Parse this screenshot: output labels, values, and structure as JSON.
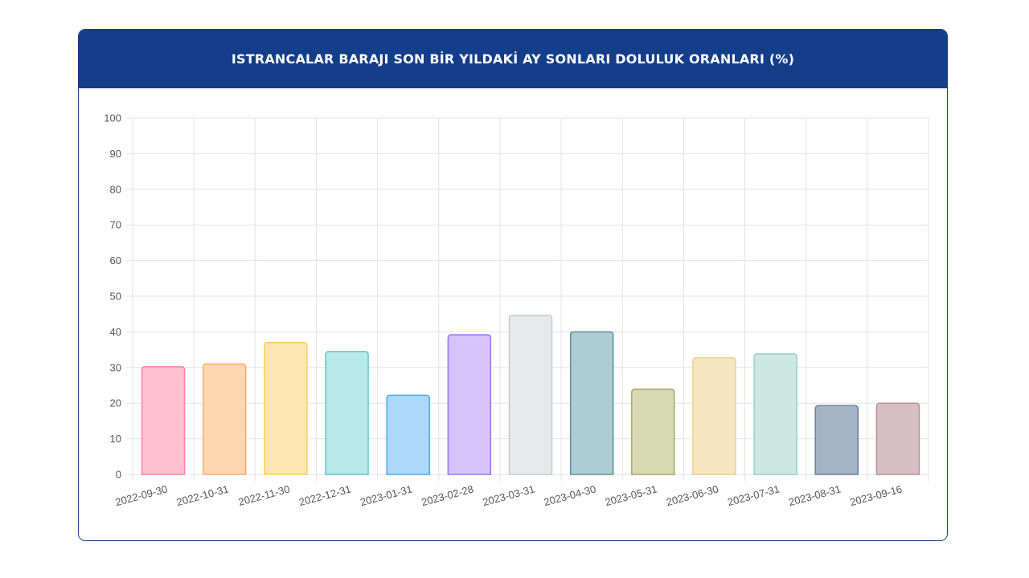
{
  "header": {
    "title": "ISTRANCALAR BARAJI SON BİR YILDAKİ AY SONLARI DOLULUK ORANLARI (%)"
  },
  "colors": {
    "header_bg": "#143d8a",
    "grid": "#e3e3e3"
  },
  "chart_data": {
    "type": "bar",
    "title": "ISTRANCALAR BARAJI SON BİR YILDAKİ AY SONLARI DOLULUK ORANLARI (%)",
    "xlabel": "",
    "ylabel": "",
    "ylim": [
      0,
      100
    ],
    "yticks": [
      0,
      10,
      20,
      30,
      40,
      50,
      60,
      70,
      80,
      90,
      100
    ],
    "grid": true,
    "legend": "none",
    "categories": [
      "2022-09-30",
      "2022-10-31",
      "2022-11-30",
      "2022-12-31",
      "2023-01-31",
      "2023-02-28",
      "2023-03-31",
      "2023-04-30",
      "2023-05-31",
      "2023-06-30",
      "2023-07-31",
      "2023-08-31",
      "2023-09-16"
    ],
    "values": [
      30.2,
      31.0,
      37.0,
      34.5,
      22.2,
      39.2,
      44.6,
      40.0,
      23.9,
      32.7,
      33.8,
      19.3,
      20.0
    ],
    "bar_colors": [
      {
        "fill": "#ffc1d1",
        "stroke": "#ff7fa3"
      },
      {
        "fill": "#ffd6b0",
        "stroke": "#ffae66"
      },
      {
        "fill": "#ffe6b3",
        "stroke": "#ffc95c"
      },
      {
        "fill": "#b8e9e9",
        "stroke": "#5cc6c6"
      },
      {
        "fill": "#acd9fb",
        "stroke": "#4aa8ec"
      },
      {
        "fill": "#d7c2fb",
        "stroke": "#9c73f0"
      },
      {
        "fill": "#e8e9eb",
        "stroke": "#c6c8cc"
      },
      {
        "fill": "#aeccd3",
        "stroke": "#5e8f99"
      },
      {
        "fill": "#d6d9b1",
        "stroke": "#a5a86c"
      },
      {
        "fill": "#f6e6c2",
        "stroke": "#e8cd8c"
      },
      {
        "fill": "#cce8e1",
        "stroke": "#96cfc2"
      },
      {
        "fill": "#a6b4c8",
        "stroke": "#6a7d99"
      },
      {
        "fill": "#d7bec4",
        "stroke": "#b3929b"
      }
    ]
  }
}
